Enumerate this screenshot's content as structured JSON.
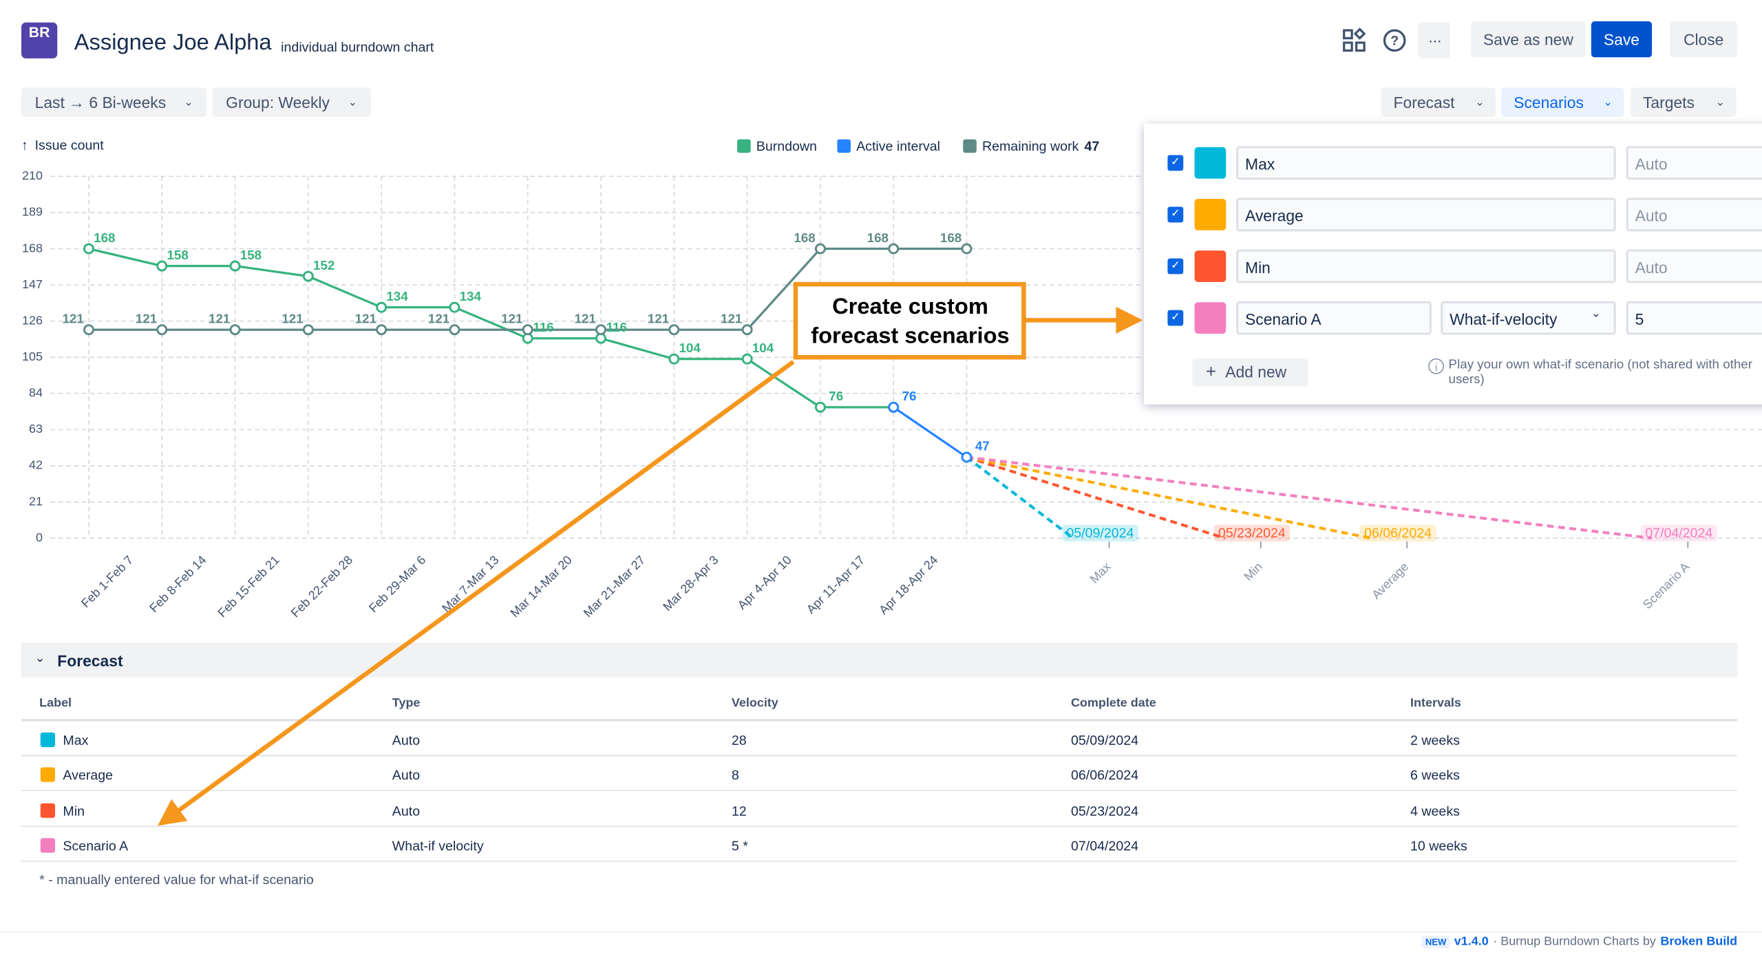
{
  "header": {
    "logo": "BR",
    "title": "Assignee Joe Alpha",
    "subtitle": "individual burndown chart",
    "buttons": [
      "Save as new",
      "Save",
      "Close"
    ]
  },
  "toolbar": {
    "left": [
      "Last → 6 Bi-weeks",
      "Group: Weekly"
    ],
    "right": [
      "Forecast",
      "Scenarios",
      "Targets"
    ]
  },
  "chart_data": {
    "type": "line",
    "y_label": "Issue count",
    "ylim": [
      0,
      210
    ],
    "yticks": [
      0,
      21,
      42,
      63,
      84,
      105,
      126,
      147,
      168,
      189,
      210
    ],
    "grid": true,
    "categories": [
      "Feb 1-Feb 7",
      "Feb 8-Feb 14",
      "Feb 15-Feb 21",
      "Feb 22-Feb 28",
      "Feb 29-Mar 6",
      "Mar 7-Mar 13",
      "Mar 14-Mar 20",
      "Mar 21-Mar 27",
      "Mar 28-Apr 3",
      "Apr 4-Apr 10",
      "Apr 11-Apr 17",
      "Apr 18-Apr 24",
      null
    ],
    "series": [
      {
        "name": "Burndown",
        "color": "#36b37e",
        "values": [
          168,
          158,
          158,
          152,
          134,
          134,
          116,
          116,
          104,
          104,
          76,
          76,
          null
        ]
      },
      {
        "name": "Active interval",
        "color": "#2684ff",
        "values": [
          null,
          null,
          null,
          null,
          null,
          null,
          null,
          null,
          null,
          null,
          null,
          76,
          47
        ]
      },
      {
        "name": "Remaining work",
        "color": "#5f8a86",
        "legend_value": 47,
        "values": [
          121,
          121,
          121,
          121,
          121,
          121,
          121,
          121,
          121,
          121,
          168,
          168,
          168
        ]
      }
    ],
    "forecasts": [
      {
        "name": "Max",
        "color": "#00b8d9",
        "values": [
          47,
          0
        ],
        "date": "05/09/2024"
      },
      {
        "name": "Min",
        "color": "#ff5630",
        "values": [
          47,
          0
        ],
        "date": "05/23/2024"
      },
      {
        "name": "Average",
        "color": "#ffab00",
        "values": [
          47,
          0
        ],
        "date": "06/06/2024"
      },
      {
        "name": "Scenario A",
        "color": "#f47fbf",
        "values": [
          47,
          0
        ],
        "date": "07/04/2024"
      }
    ]
  },
  "scenarios": {
    "rows": [
      {
        "name": "Max",
        "color": "#00b8d9",
        "type": "Auto"
      },
      {
        "name": "Average",
        "color": "#ffab00",
        "type": "Auto"
      },
      {
        "name": "Min",
        "color": "#ff5630",
        "type": "Auto"
      },
      {
        "name": "Scenario A",
        "color": "#f47fbf",
        "type": "What-if-velocity",
        "velocity": 5
      }
    ],
    "add": "Add new",
    "hint": "Play your own what-if scenario (not shared with other users)"
  },
  "callout": [
    "Create custom",
    "forecast scenarios"
  ],
  "forecast_table": {
    "title": "Forecast",
    "columns": [
      "Label",
      "Type",
      "Velocity",
      "Complete date",
      "Intervals"
    ],
    "rows": [
      {
        "label": "Max",
        "color": "#00b8d9",
        "type": "Auto",
        "velocity": 28,
        "date": "05/09/2024",
        "intervals": "2 weeks"
      },
      {
        "label": "Average",
        "color": "#ffab00",
        "type": "Auto",
        "velocity": 8,
        "date": "06/06/2024",
        "intervals": "6 weeks"
      },
      {
        "label": "Min",
        "color": "#ff5630",
        "type": "Auto",
        "velocity": 12,
        "date": "05/23/2024",
        "intervals": "4 weeks"
      },
      {
        "label": "Scenario A",
        "color": "#f47fbf",
        "type": "What-if velocity",
        "velocity": "5 *",
        "date": "07/04/2024",
        "intervals": "10 weeks"
      }
    ],
    "footnote": "* - manually entered value for what-if scenario"
  },
  "footer": {
    "badge": "NEW",
    "version": "v1.4.0",
    "text": "· Burnup Burndown Charts by",
    "link": "Broken Build"
  }
}
